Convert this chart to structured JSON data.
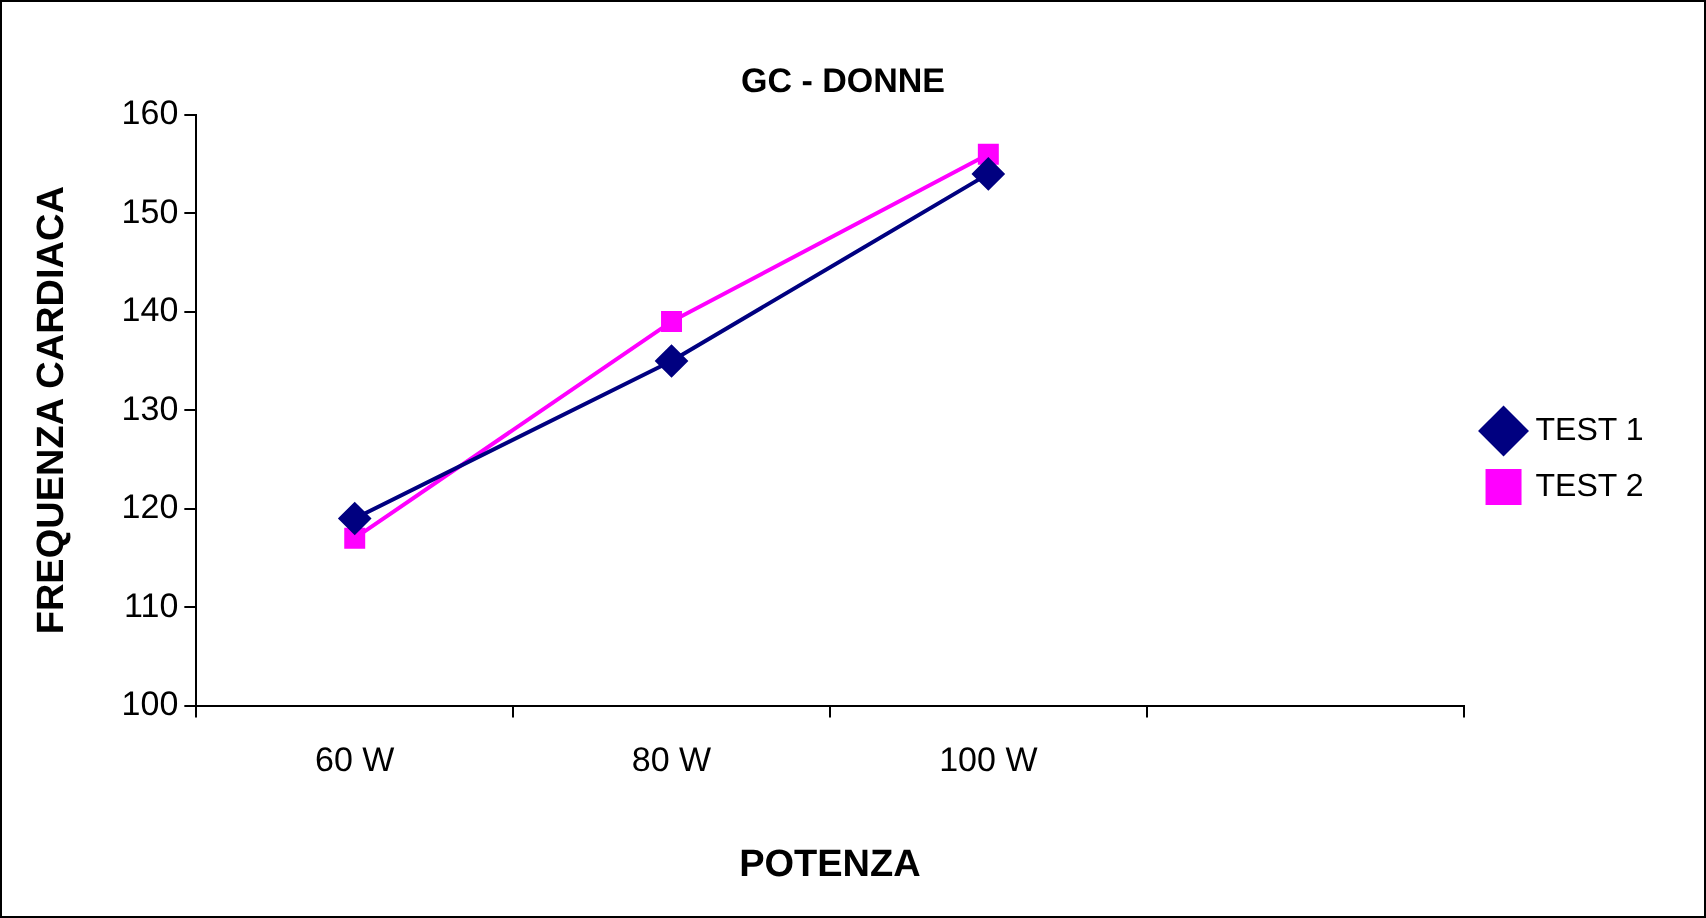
{
  "chart_data": {
    "type": "line",
    "title": "GC - DONNE",
    "xlabel": "POTENZA",
    "ylabel": "FREQUENZA CARDIACA",
    "categories": [
      "60 W",
      "80 W",
      "100 W",
      null
    ],
    "series": [
      {
        "name": "TEST 1",
        "color": "#000080",
        "values": [
          119,
          135,
          154,
          null
        ],
        "marker": "diamond"
      },
      {
        "name": "TEST 2",
        "color": "#ff00ff",
        "values": [
          117,
          139,
          156,
          null
        ],
        "marker": "square"
      }
    ],
    "ylim": [
      100,
      160
    ],
    "yticks": [
      100,
      110,
      120,
      130,
      140,
      150,
      160
    ],
    "grid": false,
    "legend": "right",
    "line_style": "solid"
  }
}
